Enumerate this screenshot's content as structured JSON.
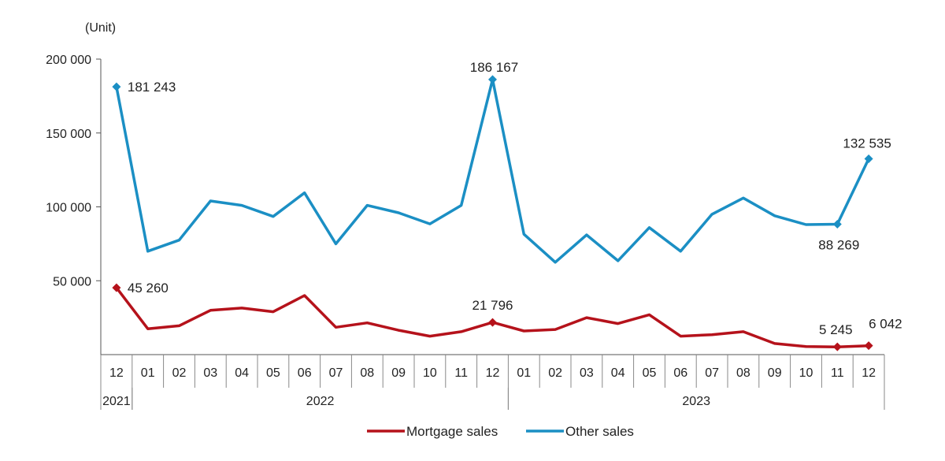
{
  "chart_data": {
    "type": "line",
    "unit_label": "(Unit)",
    "y_ticks": [
      "200 000",
      "150 000",
      "100 000",
      "50 000"
    ],
    "y_tick_values": [
      200000,
      150000,
      100000,
      50000
    ],
    "ylim": [
      0,
      200000
    ],
    "categories": [
      "12",
      "01",
      "02",
      "03",
      "04",
      "05",
      "06",
      "07",
      "08",
      "09",
      "10",
      "11",
      "12",
      "01",
      "02",
      "03",
      "04",
      "05",
      "06",
      "07",
      "08",
      "09",
      "10",
      "11",
      "12"
    ],
    "years": [
      {
        "label": "2021",
        "start": 0,
        "end": 0
      },
      {
        "label": "2022",
        "start": 1,
        "end": 12
      },
      {
        "label": "2023",
        "start": 13,
        "end": 24
      }
    ],
    "legend_position": "bottom",
    "series": [
      {
        "name": "Mortgage sales",
        "color": "#b5121b",
        "values": [
          45260,
          17500,
          19500,
          30000,
          31500,
          29000,
          40000,
          18500,
          21500,
          16500,
          12500,
          15500,
          21796,
          16000,
          17000,
          25000,
          21000,
          27000,
          12500,
          13500,
          15500,
          7500,
          5500,
          5245,
          6042
        ],
        "labels": [
          {
            "index": 0,
            "text": "45 260"
          },
          {
            "index": 12,
            "text": "21 796"
          },
          {
            "index": 23,
            "text": "5 245"
          },
          {
            "index": 24,
            "text": "6 042"
          }
        ]
      },
      {
        "name": "Other sales",
        "color": "#1b8fc4",
        "values": [
          181243,
          70000,
          77500,
          104000,
          101000,
          93500,
          109500,
          75000,
          101000,
          96000,
          88500,
          101000,
          186167,
          81500,
          62500,
          81000,
          63500,
          86000,
          70000,
          95000,
          106000,
          94000,
          88000,
          88269,
          132535
        ],
        "labels": [
          {
            "index": 0,
            "text": "181 243"
          },
          {
            "index": 12,
            "text": "186 167"
          },
          {
            "index": 23,
            "text": "88 269"
          },
          {
            "index": 24,
            "text": "132 535"
          }
        ]
      }
    ]
  }
}
